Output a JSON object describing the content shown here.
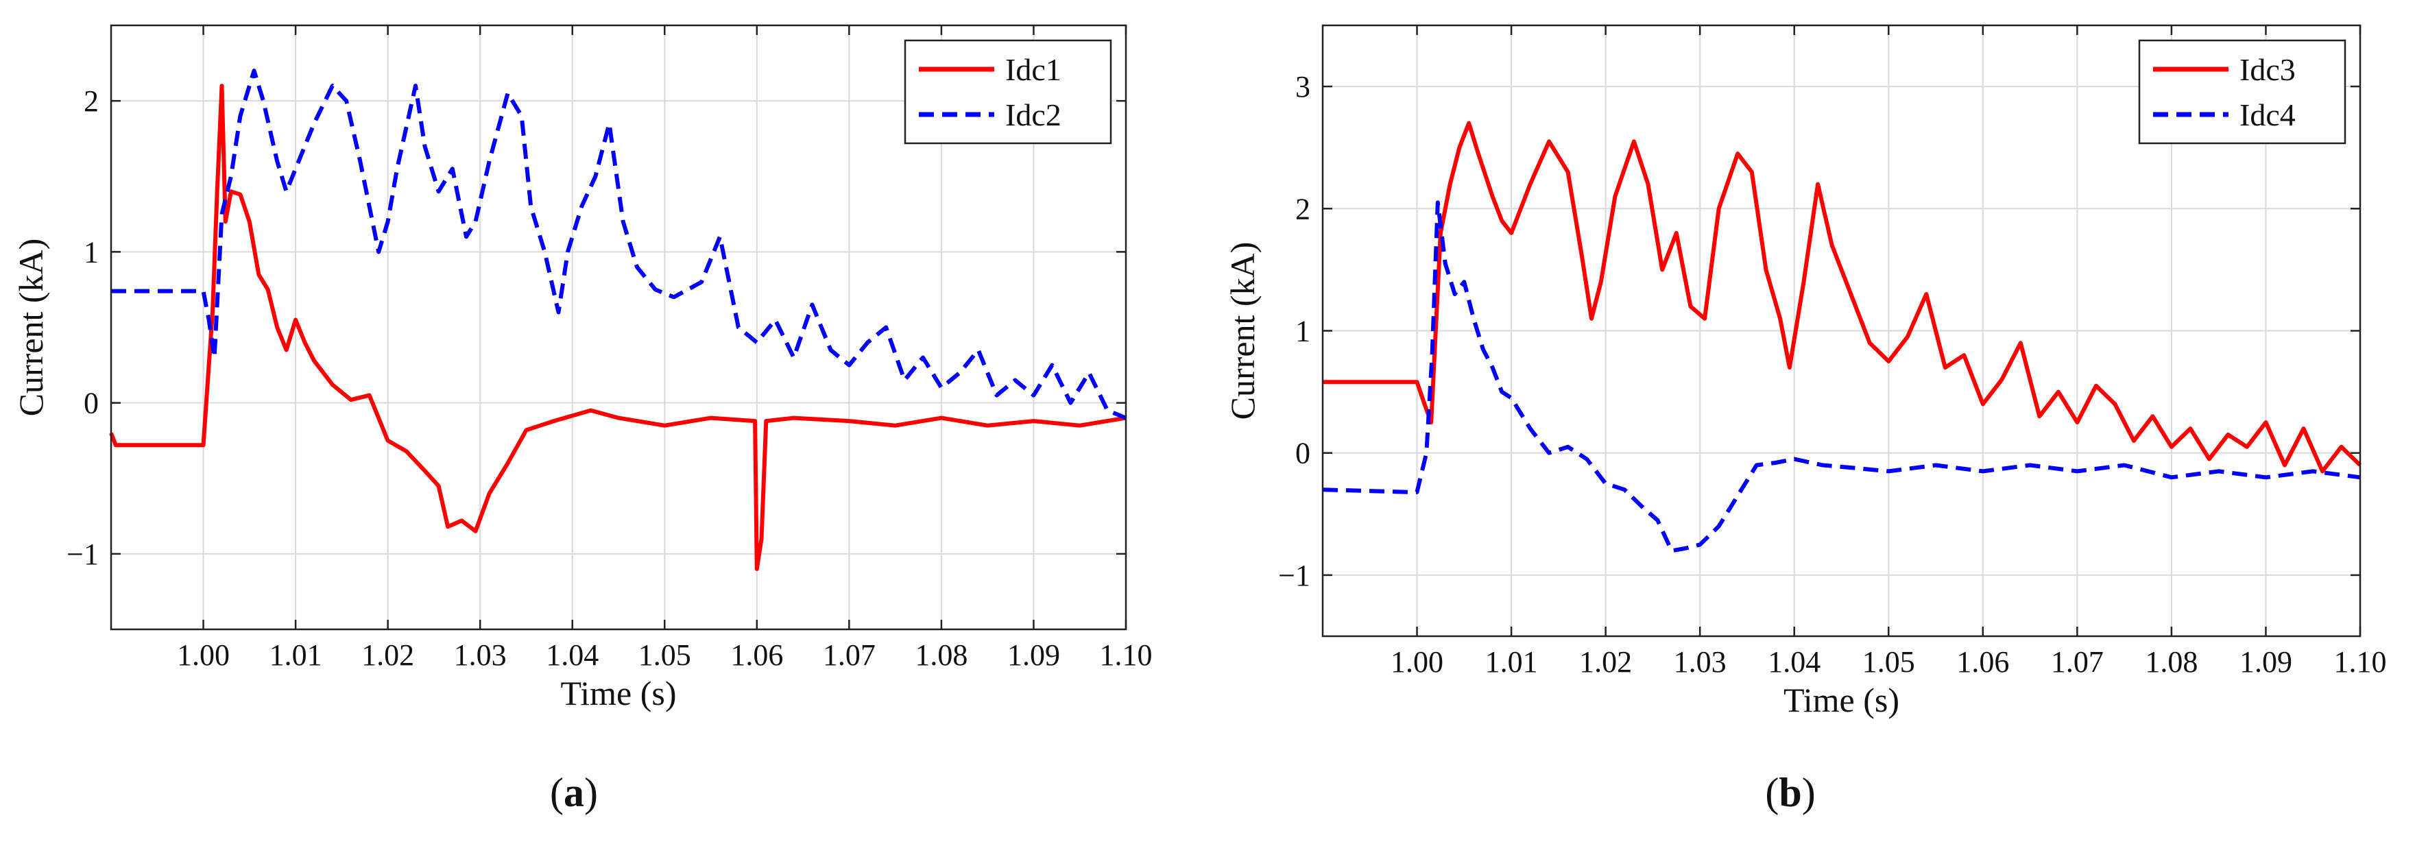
{
  "chart_data": [
    {
      "type": "line",
      "panel": "a",
      "caption": {
        "open": "(",
        "letter": "a",
        "close": ")"
      },
      "xlabel": "Time (s)",
      "ylabel": "Current (kA)",
      "xlim": [
        0.99,
        1.1
      ],
      "ylim": [
        -1.5,
        2.5
      ],
      "xticks": [
        1.0,
        1.01,
        1.02,
        1.03,
        1.04,
        1.05,
        1.06,
        1.07,
        1.08,
        1.09,
        1.1
      ],
      "xtick_labels": [
        "1.00",
        "1.01",
        "1.02",
        "1.03",
        "1.04",
        "1.05",
        "1.06",
        "1.07",
        "1.08",
        "1.09",
        "1.10"
      ],
      "yticks": [
        -1,
        0,
        1,
        2
      ],
      "ytick_labels": [
        "−1",
        "0",
        "1",
        "2"
      ],
      "grid": true,
      "legend_position": "top-right",
      "series": [
        {
          "name": "Idc1",
          "color": "#ff0000",
          "dash": "solid",
          "x": [
            0.99,
            0.9905,
            0.991,
            0.999,
            1.0,
            1.001,
            1.0015,
            1.002,
            1.0024,
            1.003,
            1.004,
            1.005,
            1.006,
            1.007,
            1.008,
            1.009,
            1.01,
            1.011,
            1.012,
            1.014,
            1.016,
            1.018,
            1.02,
            1.022,
            1.024,
            1.0255,
            1.0265,
            1.028,
            1.0295,
            1.031,
            1.033,
            1.035,
            1.038,
            1.042,
            1.045,
            1.05,
            1.055,
            1.0598,
            1.06,
            1.0605,
            1.061,
            1.064,
            1.07,
            1.075,
            1.08,
            1.085,
            1.09,
            1.095,
            1.1
          ],
          "y": [
            -0.2,
            -0.28,
            -0.28,
            -0.28,
            -0.28,
            0.6,
            1.4,
            2.1,
            1.2,
            1.4,
            1.38,
            1.2,
            0.85,
            0.75,
            0.5,
            0.35,
            0.55,
            0.4,
            0.28,
            0.12,
            0.02,
            0.05,
            -0.25,
            -0.32,
            -0.45,
            -0.55,
            -0.82,
            -0.78,
            -0.85,
            -0.6,
            -0.4,
            -0.18,
            -0.12,
            -0.05,
            -0.1,
            -0.15,
            -0.1,
            -0.12,
            -1.1,
            -0.9,
            -0.12,
            -0.1,
            -0.12,
            -0.15,
            -0.1,
            -0.15,
            -0.12,
            -0.15,
            -0.1
          ]
        },
        {
          "name": "Idc2",
          "color": "#0000ff",
          "dash": "dashed",
          "x": [
            0.99,
            0.999,
            1.0,
            1.0006,
            1.0012,
            1.002,
            1.003,
            1.004,
            1.0055,
            1.0065,
            1.008,
            1.009,
            1.01,
            1.012,
            1.014,
            1.0155,
            1.017,
            1.018,
            1.019,
            1.02,
            1.021,
            1.023,
            1.024,
            1.0255,
            1.027,
            1.0285,
            1.0295,
            1.031,
            1.033,
            1.0345,
            1.0355,
            1.037,
            1.0385,
            1.0395,
            1.041,
            1.0425,
            1.044,
            1.0455,
            1.047,
            1.049,
            1.051,
            1.054,
            1.056,
            1.058,
            1.06,
            1.062,
            1.064,
            1.066,
            1.068,
            1.07,
            1.072,
            1.074,
            1.076,
            1.078,
            1.08,
            1.082,
            1.084,
            1.086,
            1.088,
            1.09,
            1.092,
            1.094,
            1.096,
            1.098,
            1.1
          ],
          "y": [
            0.74,
            0.74,
            0.74,
            0.55,
            0.3,
            1.25,
            1.5,
            1.9,
            2.2,
            2.0,
            1.6,
            1.4,
            1.55,
            1.85,
            2.1,
            2.0,
            1.6,
            1.3,
            1.0,
            1.2,
            1.55,
            2.1,
            1.7,
            1.4,
            1.55,
            1.1,
            1.2,
            1.6,
            2.05,
            1.9,
            1.3,
            1.0,
            0.6,
            1.0,
            1.3,
            1.5,
            1.85,
            1.2,
            0.9,
            0.75,
            0.7,
            0.8,
            1.1,
            0.5,
            0.4,
            0.55,
            0.3,
            0.65,
            0.35,
            0.25,
            0.4,
            0.5,
            0.15,
            0.3,
            0.1,
            0.2,
            0.35,
            0.05,
            0.15,
            0.05,
            0.25,
            0.0,
            0.2,
            -0.05,
            -0.1
          ]
        }
      ]
    },
    {
      "type": "line",
      "panel": "b",
      "caption": {
        "open": "(",
        "letter": "b",
        "close": ")"
      },
      "xlabel": "Time (s)",
      "ylabel": "Current (kA)",
      "xlim": [
        0.99,
        1.1
      ],
      "ylim": [
        -1.5,
        3.5
      ],
      "xticks": [
        1.0,
        1.01,
        1.02,
        1.03,
        1.04,
        1.05,
        1.06,
        1.07,
        1.08,
        1.09,
        1.1
      ],
      "xtick_labels": [
        "1.00",
        "1.01",
        "1.02",
        "1.03",
        "1.04",
        "1.05",
        "1.06",
        "1.07",
        "1.08",
        "1.09",
        "1.10"
      ],
      "yticks": [
        -1,
        0,
        1,
        2,
        3
      ],
      "ytick_labels": [
        "−1",
        "0",
        "1",
        "2",
        "3"
      ],
      "grid": true,
      "legend_position": "top-right",
      "series": [
        {
          "name": "Idc3",
          "color": "#ff0000",
          "dash": "solid",
          "x": [
            0.99,
            0.999,
            1.0,
            1.0008,
            1.0015,
            1.0025,
            1.0035,
            1.0045,
            1.0055,
            1.0065,
            1.008,
            1.009,
            1.01,
            1.012,
            1.014,
            1.016,
            1.0175,
            1.0185,
            1.0195,
            1.021,
            1.023,
            1.0245,
            1.026,
            1.0275,
            1.029,
            1.0305,
            1.032,
            1.034,
            1.0355,
            1.037,
            1.0385,
            1.0395,
            1.041,
            1.0425,
            1.044,
            1.046,
            1.048,
            1.05,
            1.052,
            1.054,
            1.056,
            1.058,
            1.06,
            1.062,
            1.064,
            1.066,
            1.068,
            1.07,
            1.072,
            1.074,
            1.076,
            1.078,
            1.08,
            1.082,
            1.084,
            1.086,
            1.088,
            1.09,
            1.092,
            1.094,
            1.096,
            1.098,
            1.1
          ],
          "y": [
            0.58,
            0.58,
            0.58,
            0.4,
            0.25,
            1.8,
            2.2,
            2.5,
            2.7,
            2.45,
            2.1,
            1.9,
            1.8,
            2.2,
            2.55,
            2.3,
            1.6,
            1.1,
            1.4,
            2.1,
            2.55,
            2.2,
            1.5,
            1.8,
            1.2,
            1.1,
            2.0,
            2.45,
            2.3,
            1.5,
            1.1,
            0.7,
            1.4,
            2.2,
            1.7,
            1.3,
            0.9,
            0.75,
            0.95,
            1.3,
            0.7,
            0.8,
            0.4,
            0.6,
            0.9,
            0.3,
            0.5,
            0.25,
            0.55,
            0.4,
            0.1,
            0.3,
            0.05,
            0.2,
            -0.05,
            0.15,
            0.05,
            0.25,
            -0.1,
            0.2,
            -0.15,
            0.05,
            -0.1
          ]
        },
        {
          "name": "Idc4",
          "color": "#0000ff",
          "dash": "dashed",
          "x": [
            0.99,
            0.999,
            1.0,
            1.001,
            1.0016,
            1.0022,
            1.003,
            1.004,
            1.005,
            1.006,
            1.007,
            1.008,
            1.009,
            1.01,
            1.012,
            1.014,
            1.016,
            1.018,
            1.02,
            1.022,
            1.024,
            1.0255,
            1.027,
            1.0285,
            1.03,
            1.032,
            1.034,
            1.036,
            1.038,
            1.04,
            1.043,
            1.046,
            1.05,
            1.055,
            1.06,
            1.065,
            1.07,
            1.075,
            1.08,
            1.085,
            1.09,
            1.095,
            1.1
          ],
          "y": [
            -0.3,
            -0.32,
            -0.32,
            0.0,
            0.8,
            2.05,
            1.55,
            1.3,
            1.4,
            1.1,
            0.85,
            0.7,
            0.5,
            0.45,
            0.2,
            0.0,
            0.05,
            -0.05,
            -0.25,
            -0.3,
            -0.45,
            -0.55,
            -0.8,
            -0.78,
            -0.75,
            -0.6,
            -0.35,
            -0.1,
            -0.08,
            -0.05,
            -0.1,
            -0.12,
            -0.15,
            -0.1,
            -0.15,
            -0.1,
            -0.15,
            -0.1,
            -0.2,
            -0.15,
            -0.2,
            -0.15,
            -0.2
          ]
        }
      ]
    }
  ]
}
